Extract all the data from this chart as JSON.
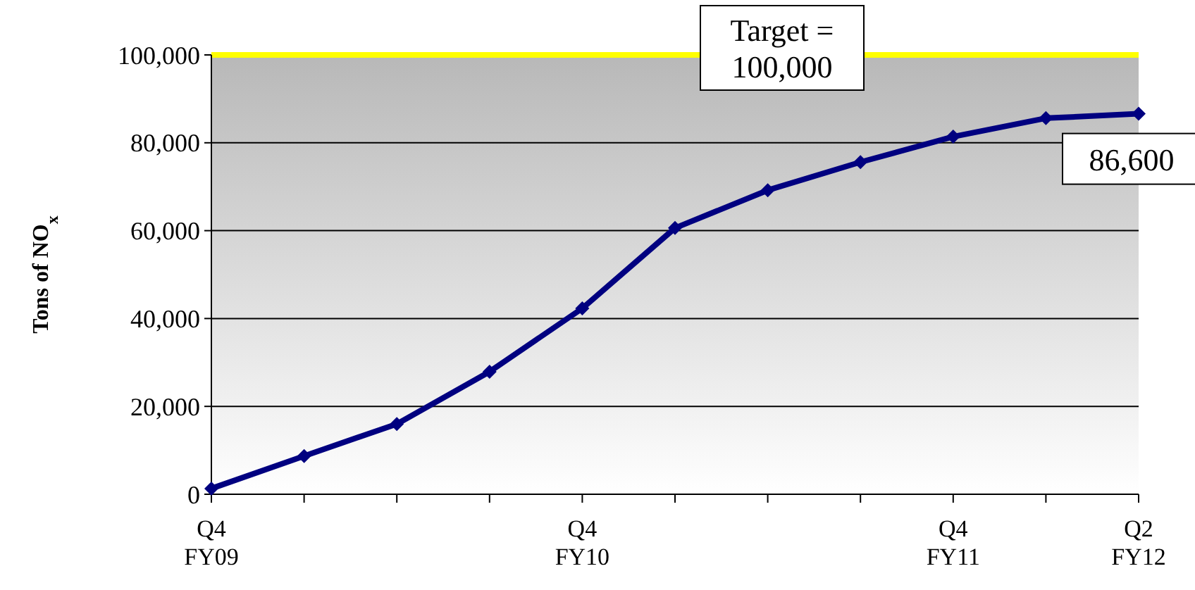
{
  "chart_data": {
    "type": "line",
    "ylabel": "Tons of NO$_{x}$",
    "categories": [
      "Q4\nFY09",
      null,
      null,
      null,
      "Q4\nFY10",
      null,
      null,
      null,
      "Q4\nFY11",
      null,
      "Q2\nFY12"
    ],
    "series": [
      {
        "color": "#000080",
        "values": [
          1300,
          8700,
          16000,
          27900,
          42300,
          60600,
          69200,
          75600,
          81400,
          85600,
          86600
        ]
      }
    ],
    "ylim": [
      0,
      100000
    ],
    "yticks": [
      {
        "value": 0,
        "label": "0"
      },
      {
        "value": 20000,
        "label": "20,000"
      },
      {
        "value": 40000,
        "label": "40,000"
      },
      {
        "value": 60000,
        "label": "60,000"
      },
      {
        "value": 80000,
        "label": "80,000"
      },
      {
        "value": 100000,
        "label": "100,000"
      }
    ],
    "grid": "y",
    "marker": "diamond",
    "line_style": "solid",
    "ref_lines": [
      {
        "axis": "y",
        "value": 100000,
        "label": "Target =\n100,000",
        "color": "#ffff00"
      }
    ],
    "annotations": [
      {
        "text": "86,600",
        "x": "Q2\nFY12",
        "y": 86600
      }
    ]
  }
}
